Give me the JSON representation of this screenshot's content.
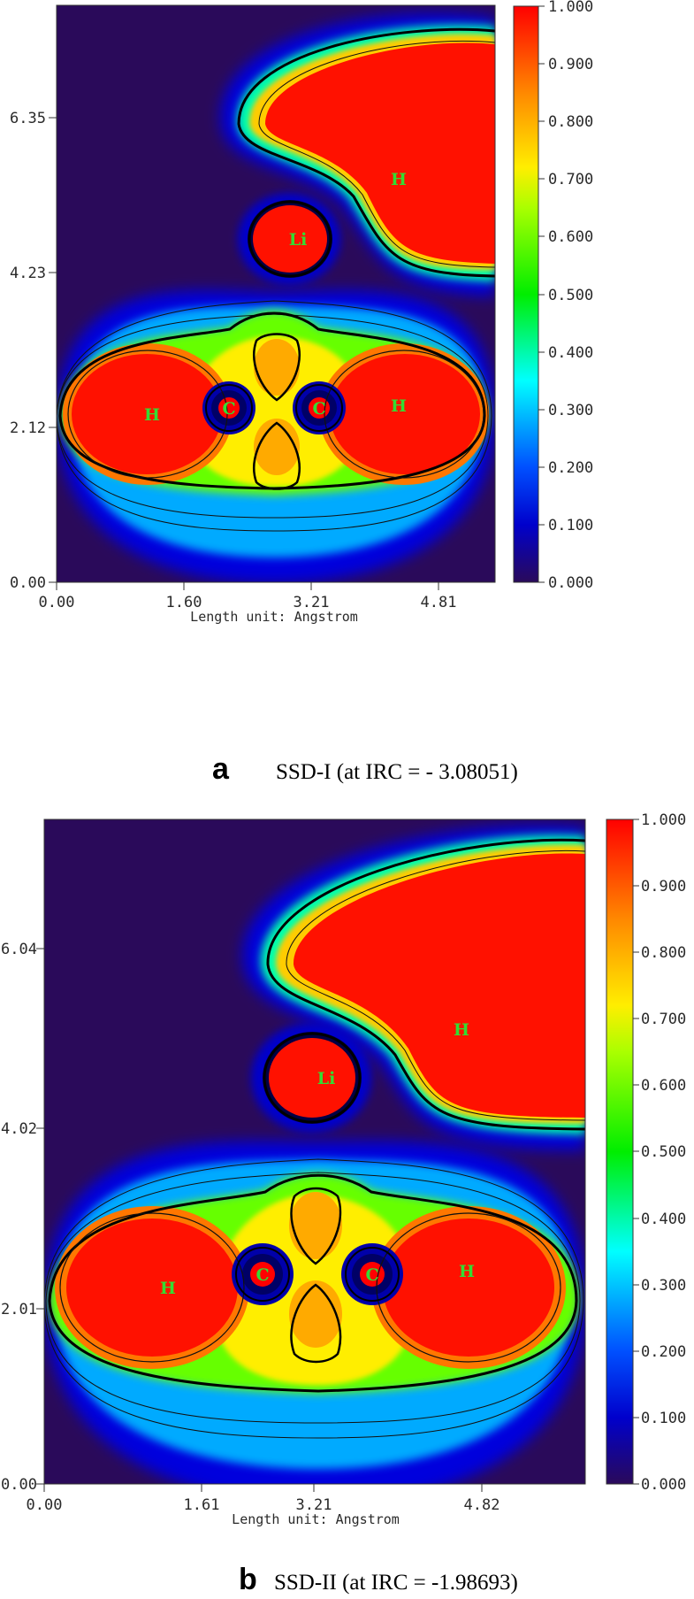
{
  "colorscale": {
    "stops": [
      "#2a0a5a",
      "#0000ff",
      "#00ffff",
      "#00ff00",
      "#ffff00",
      "#ff8c00",
      "#ff0000"
    ]
  },
  "panels": [
    {
      "letter": "a",
      "caption": "SSD-I (at IRC = - 3.08051)",
      "x_ticks": [
        "0.00",
        "1.60",
        "3.21",
        "4.81"
      ],
      "y_ticks": [
        "0.00",
        "2.12",
        "4.23",
        "6.35"
      ],
      "xlabel": "Length unit: Angstrom",
      "colorbar_ticks": [
        "0.000",
        "0.100",
        "0.200",
        "0.300",
        "0.400",
        "0.500",
        "0.600",
        "0.700",
        "0.800",
        "0.900",
        "1.000"
      ],
      "atoms": [
        {
          "label": "H",
          "x": 1.28,
          "y": 2.31
        },
        {
          "label": "C",
          "x": 2.46,
          "y": 2.4
        },
        {
          "label": "C",
          "x": 3.76,
          "y": 2.4
        },
        {
          "label": "H",
          "x": 4.81,
          "y": 2.45
        },
        {
          "label": "Li",
          "x": 3.32,
          "y": 4.67
        },
        {
          "label": "H",
          "x": 4.81,
          "y": 5.59
        }
      ]
    },
    {
      "letter": "b",
      "caption": "SSD-II (at IRC =  -1.98693)",
      "x_ticks": [
        "0.00",
        "1.61",
        "3.21",
        "4.82"
      ],
      "y_ticks": [
        "0.00",
        "2.01",
        "4.02",
        "6.04"
      ],
      "xlabel": "Length unit: Angstrom",
      "colorbar_ticks": [
        "0.000",
        "0.100",
        "0.200",
        "0.300",
        "0.400",
        "0.500",
        "0.600",
        "0.700",
        "0.800",
        "0.900",
        "1.000"
      ],
      "atoms": [
        {
          "label": "H",
          "x": 1.33,
          "y": 2.22
        },
        {
          "label": "C",
          "x": 2.48,
          "y": 2.36
        },
        {
          "label": "C",
          "x": 3.68,
          "y": 2.36
        },
        {
          "label": "H",
          "x": 4.84,
          "y": 2.39
        },
        {
          "label": "Li",
          "x": 3.21,
          "y": 4.53
        },
        {
          "label": "H",
          "x": 4.84,
          "y": 5.16
        }
      ]
    }
  ]
}
